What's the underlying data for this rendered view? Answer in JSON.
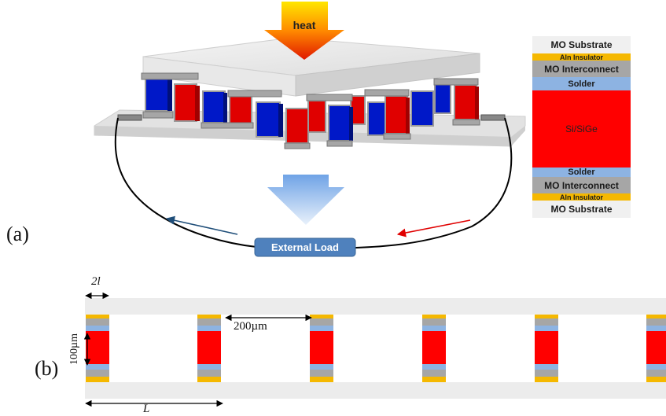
{
  "panel_a": {
    "label": "(a)",
    "heat_label": "heat",
    "load_label": "External Load"
  },
  "panel_b": {
    "label": "(b)",
    "dim_2l": "2l",
    "dim_gap": "200µm",
    "dim_height": "100µm",
    "dim_L": "L"
  },
  "layer_stack": [
    {
      "label": "MO Substrate",
      "color": "#f0f0f0",
      "text_color": "#1a1a1a"
    },
    {
      "label": "Aln Insulator",
      "color": "#f5b800",
      "text_color": "#1a1a1a"
    },
    {
      "label": "MO Interconnect",
      "color": "#a6a6a6",
      "text_color": "#1a1a1a"
    },
    {
      "label": "Solder",
      "color": "#8db3e2",
      "text_color": "#1a1a1a"
    },
    {
      "label": "Si/SiGe",
      "color": "#ff0000",
      "text_color": "#222222"
    },
    {
      "label": "Solder",
      "color": "#8db3e2",
      "text_color": "#1a1a1a"
    },
    {
      "label": "MO Interconnect",
      "color": "#a6a6a6",
      "text_color": "#1a1a1a"
    },
    {
      "label": "Aln Insulator",
      "color": "#f5b800",
      "text_color": "#1a1a1a"
    },
    {
      "label": "MO Substrate",
      "color": "#f0f0f0",
      "text_color": "#1a1a1a"
    }
  ],
  "colors": {
    "p_leg": "#e00000",
    "n_leg": "#0018c8",
    "wire": "#000000",
    "load_box": "#4f81bd",
    "left_arrow": "#1f4e79",
    "right_arrow": "#e00000"
  }
}
